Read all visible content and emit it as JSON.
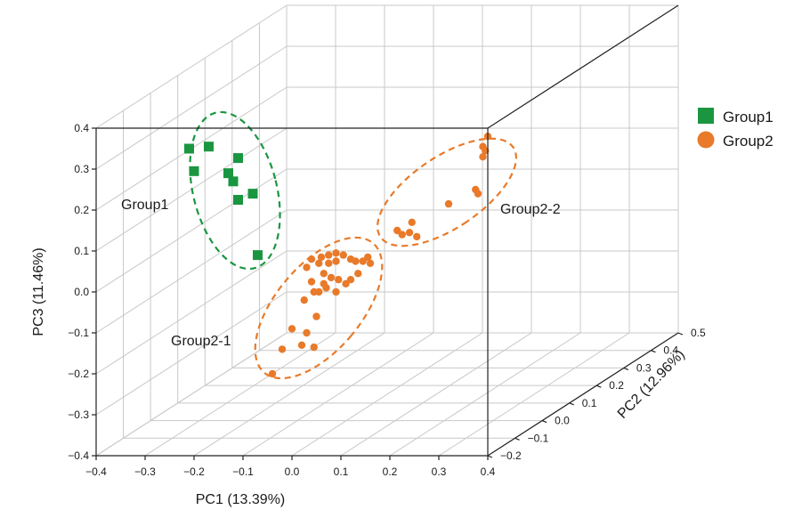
{
  "chart_data": {
    "type": "scatter",
    "projection": "3d",
    "title": "",
    "x_axis": {
      "label": "PC1 (13.39%)",
      "range": [
        -0.4,
        0.4
      ],
      "ticks": [
        "−0.4",
        "−0.3",
        "−0.2",
        "−0.1",
        "0.0",
        "0.1",
        "0.2",
        "0.3",
        "0.4"
      ]
    },
    "y_axis": {
      "label": "PC2 (12.96%)",
      "range": [
        -0.2,
        0.5
      ],
      "ticks": [
        "−0.2",
        "−0.1",
        "0.0",
        "0.1",
        "0.2",
        "0.3",
        "0.4",
        "0.5"
      ]
    },
    "z_axis": {
      "label": "PC3 (11.46%)",
      "range": [
        -0.4,
        0.4
      ],
      "ticks": [
        "−0.4",
        "−0.3",
        "−0.2",
        "−0.1",
        "0.0",
        "0.1",
        "0.2",
        "0.3",
        "0.4"
      ]
    },
    "grid": true,
    "legend": {
      "position": "top-right",
      "entries": [
        {
          "name": "Group1",
          "marker": "square",
          "color": "#1a9641"
        },
        {
          "name": "Group2",
          "marker": "circle",
          "color": "#e87a2a"
        }
      ]
    },
    "series": [
      {
        "name": "Group1",
        "marker": "square",
        "color": "#1a9641",
        "note": "apparent (PC1, PC3) positions read off the projected scatter; PC2 depth not recoverable",
        "points": [
          [
            -0.21,
            0.35
          ],
          [
            -0.17,
            0.355
          ],
          [
            -0.2,
            0.295
          ],
          [
            -0.11,
            0.327
          ],
          [
            -0.13,
            0.29
          ],
          [
            -0.12,
            0.27
          ],
          [
            -0.08,
            0.24
          ],
          [
            -0.11,
            0.225
          ],
          [
            -0.07,
            0.09
          ]
        ]
      },
      {
        "name": "Group2",
        "marker": "circle",
        "color": "#e87a2a",
        "points": [
          [
            -0.04,
            -0.2
          ],
          [
            -0.02,
            -0.14
          ],
          [
            0.02,
            -0.13
          ],
          [
            0.03,
            -0.1
          ],
          [
            0.045,
            -0.135
          ],
          [
            0.0,
            -0.09
          ],
          [
            0.05,
            -0.06
          ],
          [
            0.025,
            -0.02
          ],
          [
            0.045,
            0.0
          ],
          [
            0.065,
            0.02
          ],
          [
            0.03,
            0.06
          ],
          [
            0.04,
            0.08
          ],
          [
            0.055,
            0.07
          ],
          [
            0.06,
            0.085
          ],
          [
            0.075,
            0.07
          ],
          [
            0.075,
            0.09
          ],
          [
            0.09,
            0.075
          ],
          [
            0.09,
            0.095
          ],
          [
            0.105,
            0.09
          ],
          [
            0.12,
            0.08
          ],
          [
            0.13,
            0.075
          ],
          [
            0.145,
            0.075
          ],
          [
            0.155,
            0.085
          ],
          [
            0.16,
            0.07
          ],
          [
            0.065,
            0.045
          ],
          [
            0.08,
            0.035
          ],
          [
            0.095,
            0.03
          ],
          [
            0.11,
            0.02
          ],
          [
            0.12,
            0.03
          ],
          [
            0.135,
            0.045
          ],
          [
            0.07,
            0.01
          ],
          [
            0.09,
            0.0
          ],
          [
            0.04,
            0.025
          ],
          [
            0.055,
            0.0
          ],
          [
            0.215,
            0.15
          ],
          [
            0.225,
            0.14
          ],
          [
            0.24,
            0.145
          ],
          [
            0.245,
            0.17
          ],
          [
            0.255,
            0.135
          ],
          [
            0.32,
            0.215
          ],
          [
            0.375,
            0.25
          ],
          [
            0.38,
            0.24
          ],
          [
            0.39,
            0.355
          ],
          [
            0.39,
            0.33
          ],
          [
            0.395,
            0.345
          ],
          [
            0.4,
            0.38
          ]
        ]
      }
    ],
    "annotations": [
      {
        "text": "Group1",
        "anchor_point": [
          -0.3,
          0.22
        ],
        "ellipse_color": "#1a9641"
      },
      {
        "text": "Group2-1",
        "anchor_point": [
          -0.22,
          -0.14
        ],
        "ellipse_color": "#e87a2a"
      },
      {
        "text": "Group2-2",
        "anchor_point": [
          0.43,
          0.21
        ],
        "ellipse_color": "#e87a2a"
      }
    ]
  }
}
